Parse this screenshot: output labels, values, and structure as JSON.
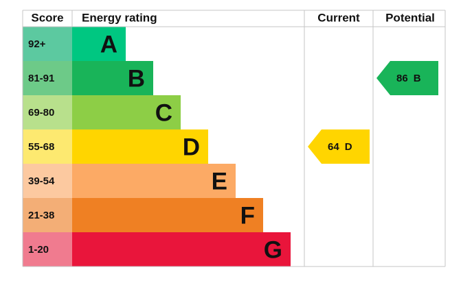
{
  "header": {
    "score": "Score",
    "rating": "Energy rating",
    "current": "Current",
    "potential": "Potential"
  },
  "bands": [
    {
      "score": "92+",
      "letter": "A",
      "color": "#00c781",
      "score_color": "#5cc9a0"
    },
    {
      "score": "81-91",
      "letter": "B",
      "color": "#19b459",
      "score_color": "#6dca88"
    },
    {
      "score": "69-80",
      "letter": "C",
      "color": "#8dce46",
      "score_color": "#b8e08c"
    },
    {
      "score": "55-68",
      "letter": "D",
      "color": "#ffd500",
      "score_color": "#fde970"
    },
    {
      "score": "39-54",
      "letter": "E",
      "color": "#fcaa65",
      "score_color": "#fcc9a0"
    },
    {
      "score": "21-38",
      "letter": "F",
      "color": "#ef8023",
      "score_color": "#f3ae76"
    },
    {
      "score": "1-20",
      "letter": "G",
      "color": "#e9153b",
      "score_color": "#f07b8f"
    }
  ],
  "current": {
    "value": 64,
    "letter": "D"
  },
  "potential": {
    "value": 86,
    "letter": "B"
  }
}
